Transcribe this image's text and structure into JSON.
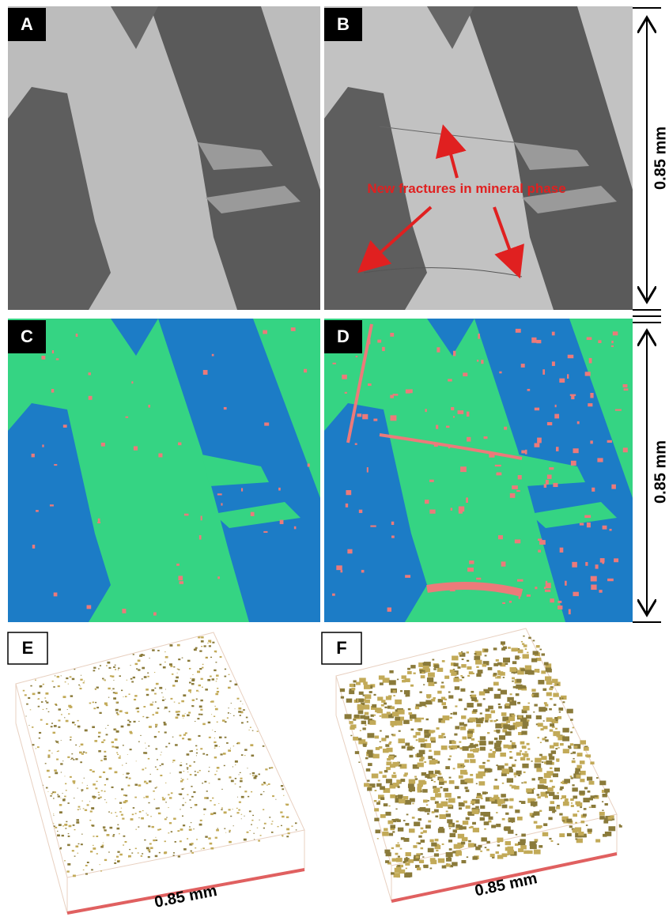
{
  "panels": [
    {
      "label": "A"
    },
    {
      "label": "B"
    },
    {
      "label": "C"
    },
    {
      "label": "D"
    },
    {
      "label": "E"
    },
    {
      "label": "F"
    }
  ],
  "annotation": "New fractures in mineral phase",
  "scale_bars": {
    "vertical_top": "0.85 mm",
    "vertical_bottom": "0.85 mm",
    "panel_e": "0.85 mm",
    "panel_f": "0.85 mm"
  }
}
